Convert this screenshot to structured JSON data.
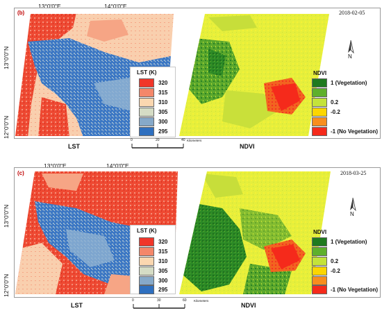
{
  "panels": [
    {
      "label": "(b)",
      "date": "2018-02-05",
      "lon_labels": [
        "13°0'0\"E",
        "14°0'0\"E"
      ],
      "lat_labels": [
        "13°0'0\"N",
        "12°0'0\"N"
      ],
      "left_map_title": "LST",
      "right_map_title": "NDVI",
      "scale_ticks": [
        "0",
        "20",
        "40"
      ],
      "scale_unit": "Kilometers",
      "lst_legend": {
        "title": "LST (K)",
        "items": [
          {
            "value": "320",
            "color": "#f0362a"
          },
          {
            "value": "315",
            "color": "#f4876a"
          },
          {
            "value": "310",
            "color": "#fbd7b0"
          },
          {
            "value": "305",
            "color": "#d5dcc5"
          },
          {
            "value": "300",
            "color": "#86a9c9"
          },
          {
            "value": "295",
            "color": "#2e6fbf"
          }
        ]
      },
      "ndvi_legend": {
        "title": "NDVI",
        "items": [
          {
            "value": "1 (Vegetation)",
            "color": "#1f7a1f"
          },
          {
            "value": "",
            "color": "#5fb02c"
          },
          {
            "value": "0.2",
            "color": "#c4e33a"
          },
          {
            "value": "-0.2",
            "color": "#fcd600"
          },
          {
            "value": "",
            "color": "#f88e1e"
          },
          {
            "value": "-1 (No Vegetation)",
            "color": "#f52a1b"
          }
        ]
      },
      "north_label": "N"
    },
    {
      "label": "(c)",
      "date": "2018-03-25",
      "lon_labels": [
        "13°0'0\"E",
        "14°0'0\"E"
      ],
      "lat_labels": [
        "13°0'0\"N",
        "12°0'0\"N"
      ],
      "left_map_title": "LST",
      "right_map_title": "NDVI",
      "scale_ticks": [
        "0",
        "30",
        "60"
      ],
      "scale_unit": "Kilometers",
      "lst_legend": {
        "title": "LST (K)",
        "items": [
          {
            "value": "320",
            "color": "#f0362a"
          },
          {
            "value": "315",
            "color": "#f4876a"
          },
          {
            "value": "310",
            "color": "#fbd7b0"
          },
          {
            "value": "305",
            "color": "#d5dcc5"
          },
          {
            "value": "300",
            "color": "#86a9c9"
          },
          {
            "value": "295",
            "color": "#2e6fbf"
          }
        ]
      },
      "ndvi_legend": {
        "title": "NDVI",
        "items": [
          {
            "value": "1 (Vegetation)",
            "color": "#1f7a1f"
          },
          {
            "value": "",
            "color": "#5fb02c"
          },
          {
            "value": "0.2",
            "color": "#c4e33a"
          },
          {
            "value": "-0.2",
            "color": "#fcd600"
          },
          {
            "value": "",
            "color": "#f88e1e"
          },
          {
            "value": "-1 (No Vegetation)",
            "color": "#f52a1b"
          }
        ]
      },
      "north_label": "N"
    }
  ]
}
